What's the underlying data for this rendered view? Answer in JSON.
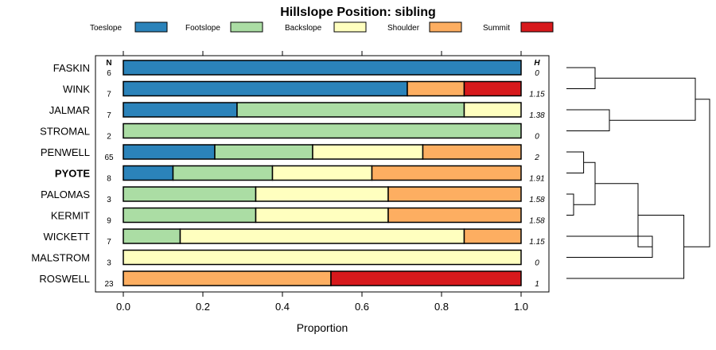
{
  "chart_data": {
    "type": "bar",
    "stacked": true,
    "title": "Hillslope Position: sibling",
    "xlabel": "Proportion",
    "xlim": [
      0,
      1
    ],
    "xticks": [
      "0.0",
      "0.2",
      "0.4",
      "0.6",
      "0.8",
      "1.0"
    ],
    "n_header": "N",
    "h_header": "H",
    "series": [
      {
        "name": "Toeslope",
        "color": "#2B83BA"
      },
      {
        "name": "Footslope",
        "color": "#ABDDA4"
      },
      {
        "name": "Backslope",
        "color": "#FFFFBF"
      },
      {
        "name": "Shoulder",
        "color": "#FDAE61"
      },
      {
        "name": "Summit",
        "color": "#D7191C"
      }
    ],
    "rows": [
      {
        "name": "FASKIN",
        "bold": false,
        "n": "6",
        "h": "0",
        "values": [
          1,
          0,
          0,
          0,
          0
        ]
      },
      {
        "name": "WINK",
        "bold": false,
        "n": "7",
        "h": "1.15",
        "values": [
          0.714,
          0,
          0,
          0.143,
          0.143
        ]
      },
      {
        "name": "JALMAR",
        "bold": false,
        "n": "7",
        "h": "1.38",
        "values": [
          0.286,
          0.571,
          0.143,
          0,
          0
        ]
      },
      {
        "name": "STROMAL",
        "bold": false,
        "n": "2",
        "h": "0",
        "values": [
          0,
          1,
          0,
          0,
          0
        ]
      },
      {
        "name": "PENWELL",
        "bold": false,
        "n": "65",
        "h": "2",
        "values": [
          0.23,
          0.246,
          0.277,
          0.247,
          0
        ]
      },
      {
        "name": "PYOTE",
        "bold": true,
        "n": "8",
        "h": "1.91",
        "values": [
          0.125,
          0.25,
          0.25,
          0.375,
          0
        ]
      },
      {
        "name": "PALOMAS",
        "bold": false,
        "n": "3",
        "h": "1.58",
        "values": [
          0,
          0.333,
          0.333,
          0.334,
          0
        ]
      },
      {
        "name": "KERMIT",
        "bold": false,
        "n": "9",
        "h": "1.58",
        "values": [
          0,
          0.333,
          0.333,
          0.334,
          0
        ]
      },
      {
        "name": "WICKETT",
        "bold": false,
        "n": "7",
        "h": "1.15",
        "values": [
          0,
          0.143,
          0.714,
          0.143,
          0
        ]
      },
      {
        "name": "MALSTROM",
        "bold": false,
        "n": "3",
        "h": "0",
        "values": [
          0,
          0,
          1,
          0,
          0
        ]
      },
      {
        "name": "ROSWELL",
        "bold": false,
        "n": "23",
        "h": "1",
        "values": [
          0,
          0,
          0,
          0.522,
          0.478
        ]
      }
    ],
    "dendrogram": {
      "leaves": [
        "FASKIN",
        "WINK",
        "JALMAR",
        "STROMAL",
        "PENWELL",
        "PYOTE",
        "PALOMAS",
        "KERMIT",
        "WICKETT",
        "MALSTROM",
        "ROSWELL"
      ],
      "merges": [
        [
          0,
          1,
          0.2
        ],
        [
          2,
          3,
          0.3
        ],
        [
          -1,
          -2,
          0.9
        ],
        [
          4,
          5,
          0.12
        ],
        [
          6,
          7,
          0.05
        ],
        [
          -4,
          -5,
          0.2
        ],
        [
          8,
          9,
          0.6
        ],
        [
          -6,
          -7,
          0.5
        ],
        [
          -8,
          10,
          0.82
        ],
        [
          -3,
          -9,
          1.0
        ]
      ]
    }
  }
}
